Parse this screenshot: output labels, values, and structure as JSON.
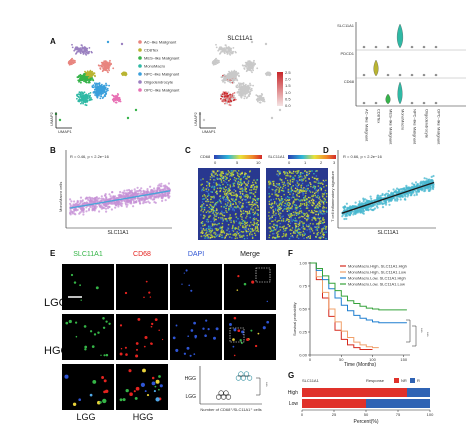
{
  "panels": {
    "A": {
      "label": "A",
      "title": "SLC11A1",
      "axes": {
        "x": "UMAP1",
        "y": "UMAP2"
      },
      "legend": [
        {
          "name": "AC–like Malignant",
          "color": "#e8857f"
        },
        {
          "name": "CD8Tex",
          "color": "#b9b432"
        },
        {
          "name": "MES–like Malignant",
          "color": "#36b34a"
        },
        {
          "name": "MonoMacro",
          "color": "#2fb9a5"
        },
        {
          "name": "NPC–like Malignant",
          "color": "#3a9fdb"
        },
        {
          "name": "Oligodendrocyte",
          "color": "#9a80c0"
        },
        {
          "name": "OPC–like Malignant",
          "color": "#e870b4"
        }
      ],
      "colorbar_ticks": [
        "2.5",
        "2.0",
        "1.5",
        "1.0",
        "0.5",
        "0.0"
      ],
      "violin_genes": [
        "SLC11A1",
        "PDCD1",
        "CD68"
      ],
      "violin_groups": [
        "AC–like Malignant",
        "CD8Tex",
        "MES–like Malignant",
        "MonoMacro",
        "NPC–like Malignant",
        "Oligodendrocyte",
        "OPC–like Malignant"
      ]
    },
    "B": {
      "label": "B",
      "stat": "R = 0.46, p < 2.2e−16",
      "ylabel": "MonoMacro cells",
      "xlabel": "SLC11A1"
    },
    "C": {
      "label": "C",
      "left_gene": "CD68",
      "right_gene": "SLC11A1",
      "left_ticks": [
        "0",
        "5",
        "10"
      ],
      "right_ticks": [
        "0",
        "1",
        "2",
        "3"
      ]
    },
    "D": {
      "label": "D",
      "stat": "R = 0.66, p < 2.2e−16",
      "ylabel": "T cell inflammatory signature",
      "xlabel": "SLC11A1"
    },
    "E": {
      "label": "E",
      "channels": [
        {
          "name": "SLC11A1",
          "color": "#35b547"
        },
        {
          "name": "CD68",
          "color": "#e5231f"
        },
        {
          "name": "DAPI",
          "color": "#2f55d4"
        },
        {
          "name": "Merge",
          "color": "#222222"
        }
      ],
      "rows": [
        "LGG",
        "HGG"
      ],
      "zoom_labels": [
        "LGG",
        "HGG"
      ],
      "dot_plot": {
        "groups": [
          "HGG",
          "LGG"
        ],
        "xlabel": "Number of CD68⁺/SLC11A1⁺ cells",
        "sig": "***"
      }
    },
    "F": {
      "label": "F",
      "legend": [
        {
          "name": "MonoMacro.High, SLC11A1.High",
          "color": "#d62a1e"
        },
        {
          "name": "MonoMacro.High, SLC11A1.Low",
          "color": "#f0a06a"
        },
        {
          "name": "MonoMacro.Low, SLC11A1.High",
          "color": "#1f7fd0"
        },
        {
          "name": "MonoMacro.Low, SLC11A1.Low",
          "color": "#35a23a"
        }
      ],
      "ylabel": "Survival probability",
      "xlabel": "Time (Months)",
      "yticks": [
        "1.00",
        "0.75",
        "0.50",
        "0.25",
        "0.00"
      ],
      "xticks": [
        "0",
        "50",
        "100",
        "150"
      ],
      "sig": [
        "***",
        "***"
      ]
    },
    "G": {
      "label": "G",
      "gene": "SLC11A1",
      "legend_title": "Response",
      "legend": [
        {
          "name": "NR",
          "color": "#e0312a"
        },
        {
          "name": "R",
          "color": "#2f63b4"
        }
      ],
      "rows": [
        "High",
        "Low"
      ],
      "xlabel": "Percent(%)",
      "xticks": [
        "0",
        "25",
        "50",
        "75",
        "100"
      ]
    }
  },
  "chart_data": [
    {
      "type": "scatter",
      "title": "",
      "xlabel": "SLC11A1",
      "ylabel": "MonoMacro cells",
      "annotation": "R = 0.46, p < 2.2e−16",
      "trend": {
        "x": [
          0.0,
          1.0
        ],
        "y": [
          0.28,
          0.55
        ]
      }
    },
    {
      "type": "scatter",
      "title": "",
      "xlabel": "SLC11A1",
      "ylabel": "T cell inflammatory signature",
      "annotation": "R = 0.66, p < 2.2e−16",
      "trend": {
        "x": [
          0.0,
          1.0
        ],
        "y": [
          0.2,
          0.68
        ]
      }
    },
    {
      "type": "line",
      "title": "",
      "xlabel": "Time (Months)",
      "ylabel": "Survival probability",
      "xlim": [
        0,
        160
      ],
      "ylim": [
        0,
        1
      ],
      "series": [
        {
          "name": "MonoMacro.High, SLC11A1.High",
          "x": [
            0,
            10,
            20,
            30,
            40,
            50,
            60,
            70,
            80,
            90,
            100
          ],
          "y": [
            1.0,
            0.82,
            0.62,
            0.42,
            0.27,
            0.17,
            0.11,
            0.08,
            0.06,
            0.06,
            0.06
          ]
        },
        {
          "name": "MonoMacro.High, SLC11A1.Low",
          "x": [
            0,
            10,
            20,
            30,
            40,
            50,
            60,
            70,
            80,
            90,
            100,
            110
          ],
          "y": [
            1.0,
            0.85,
            0.68,
            0.5,
            0.36,
            0.26,
            0.19,
            0.14,
            0.11,
            0.09,
            0.08,
            0.08
          ]
        },
        {
          "name": "MonoMacro.Low, SLC11A1.High",
          "x": [
            0,
            10,
            20,
            30,
            40,
            50,
            60,
            70,
            80,
            90,
            100,
            110,
            120,
            130,
            140,
            155
          ],
          "y": [
            1.0,
            0.92,
            0.82,
            0.72,
            0.62,
            0.54,
            0.48,
            0.43,
            0.4,
            0.38,
            0.36,
            0.35,
            0.35,
            0.35,
            0.35,
            0.35
          ]
        },
        {
          "name": "MonoMacro.Low, SLC11A1.Low",
          "x": [
            0,
            10,
            20,
            30,
            40,
            50,
            60,
            70,
            80,
            90,
            100,
            110,
            120,
            130,
            140,
            155
          ],
          "y": [
            1.0,
            0.94,
            0.86,
            0.78,
            0.7,
            0.64,
            0.59,
            0.56,
            0.53,
            0.51,
            0.5,
            0.49,
            0.49,
            0.49,
            0.49,
            0.49
          ]
        }
      ]
    },
    {
      "type": "bar",
      "title": "",
      "xlabel": "Percent(%)",
      "categories": [
        "High",
        "Low"
      ],
      "series": [
        {
          "name": "NR",
          "values": [
            82,
            50
          ]
        },
        {
          "name": "R",
          "values": [
            18,
            50
          ]
        }
      ],
      "xlim": [
        0,
        100
      ]
    },
    {
      "type": "scatter",
      "title": "",
      "xlabel": "Number of CD68⁺/SLC11A1⁺ cells",
      "categories": [
        "HGG",
        "LGG"
      ],
      "series": [
        {
          "name": "HGG",
          "values": [
            0.62,
            0.66,
            0.7,
            0.75,
            0.8
          ]
        },
        {
          "name": "LGG",
          "values": [
            0.3,
            0.34,
            0.38,
            0.42,
            0.46
          ]
        }
      ]
    }
  ]
}
